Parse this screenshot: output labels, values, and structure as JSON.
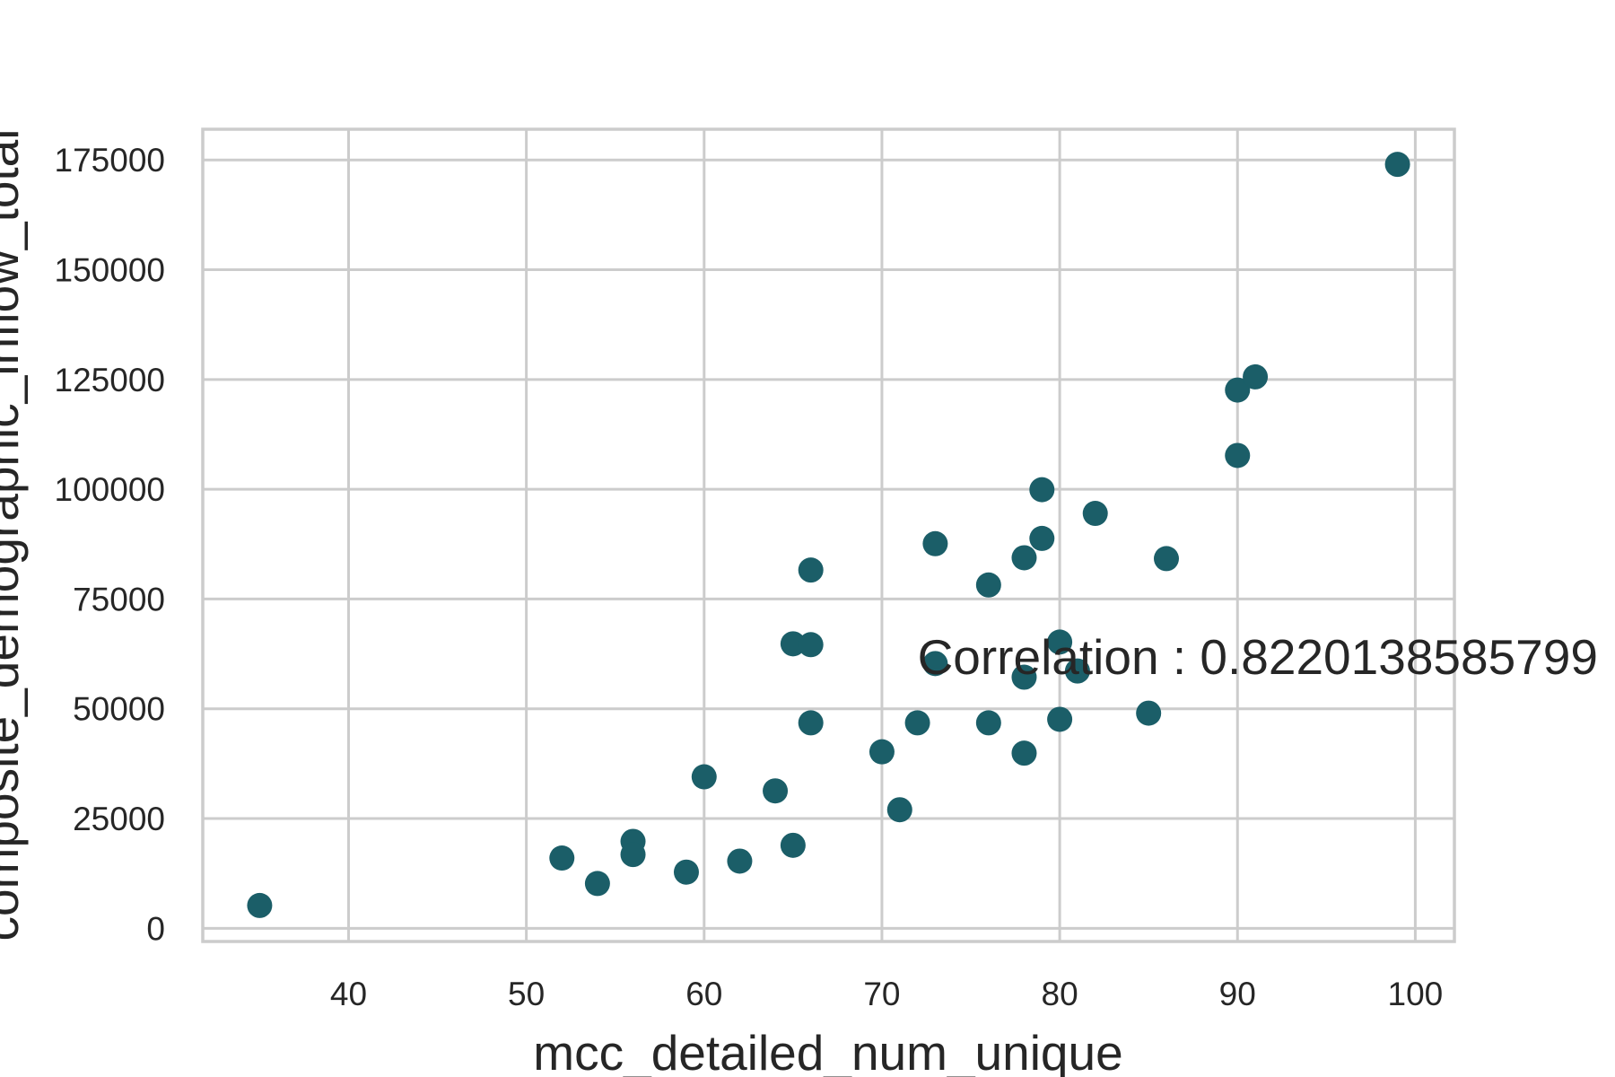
{
  "chart_data": {
    "type": "scatter",
    "title": "",
    "xlabel": "mcc_detailed_num_unique",
    "ylabel": "composite_demographic_inflow_total",
    "xlim": [
      31.8,
      102.2
    ],
    "ylim": [
      -3000,
      182000
    ],
    "xticks": [
      "40",
      "50",
      "60",
      "70",
      "80",
      "90",
      "100"
    ],
    "yticks": [
      "0",
      "25000",
      "50000",
      "75000",
      "100000",
      "125000",
      "150000",
      "175000"
    ],
    "grid": true,
    "point_color": "#1b5e68",
    "annotation": {
      "text": "Correlation : 0.8220138585799",
      "x": 72,
      "y": 62000
    },
    "points": [
      {
        "x": 35,
        "y": 5200
      },
      {
        "x": 52,
        "y": 16000
      },
      {
        "x": 54,
        "y": 10200
      },
      {
        "x": 56,
        "y": 19800
      },
      {
        "x": 56,
        "y": 16800
      },
      {
        "x": 59,
        "y": 12800
      },
      {
        "x": 60,
        "y": 34500
      },
      {
        "x": 62,
        "y": 15300
      },
      {
        "x": 64,
        "y": 31300
      },
      {
        "x": 65,
        "y": 18900
      },
      {
        "x": 65,
        "y": 64800
      },
      {
        "x": 66,
        "y": 64600
      },
      {
        "x": 66,
        "y": 81600
      },
      {
        "x": 66,
        "y": 46800
      },
      {
        "x": 70,
        "y": 40200
      },
      {
        "x": 71,
        "y": 27000
      },
      {
        "x": 72,
        "y": 46800
      },
      {
        "x": 73,
        "y": 87600
      },
      {
        "x": 73,
        "y": 60300
      },
      {
        "x": 76,
        "y": 78200
      },
      {
        "x": 76,
        "y": 46800
      },
      {
        "x": 78,
        "y": 84400
      },
      {
        "x": 78,
        "y": 57200
      },
      {
        "x": 78,
        "y": 39900
      },
      {
        "x": 79,
        "y": 88800
      },
      {
        "x": 79,
        "y": 99900
      },
      {
        "x": 80,
        "y": 65200
      },
      {
        "x": 80,
        "y": 47600
      },
      {
        "x": 81,
        "y": 58600
      },
      {
        "x": 82,
        "y": 94500
      },
      {
        "x": 85,
        "y": 49000
      },
      {
        "x": 86,
        "y": 84200
      },
      {
        "x": 90,
        "y": 122600
      },
      {
        "x": 90,
        "y": 107700
      },
      {
        "x": 91,
        "y": 125600
      },
      {
        "x": 99,
        "y": 174000
      }
    ]
  }
}
